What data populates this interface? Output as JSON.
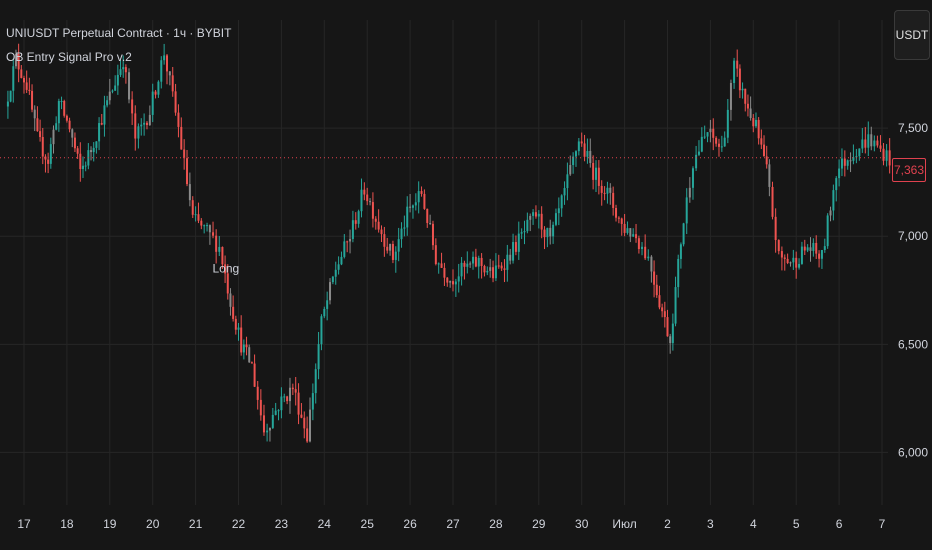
{
  "header": {
    "title": "UNIUSDT Perpetual Contract · 1ч · BYBIT",
    "indicator": "OB Entry Signal Pro v.2",
    "currency_button": "USDT"
  },
  "colors": {
    "background": "#161616",
    "grid": "#262626",
    "text": "#d1d4dc",
    "up": "#26a69a",
    "down": "#ef5350",
    "neutral": "#8a8a8a",
    "last_price": "#e0424f"
  },
  "last_price": "7,363",
  "chart_data": {
    "type": "candlestick",
    "y_axis": {
      "ticks": [
        "6,000",
        "6,500",
        "7,000",
        "7,500"
      ],
      "ylim": [
        5.78,
        8.0
      ]
    },
    "x_axis": {
      "ticks": [
        "17",
        "18",
        "19",
        "20",
        "21",
        "22",
        "23",
        "24",
        "25",
        "26",
        "27",
        "28",
        "29",
        "30",
        "Июл",
        "2",
        "3",
        "4",
        "5",
        "6",
        "7"
      ]
    },
    "path_points": [
      {
        "x": "17",
        "y": 7.6
      },
      {
        "x": "17",
        "y": 7.82
      },
      {
        "x": "17",
        "y": 7.7
      },
      {
        "x": "17",
        "y": 7.45
      },
      {
        "x": "18",
        "y": 7.35
      },
      {
        "x": "18",
        "y": 7.62
      },
      {
        "x": "18",
        "y": 7.5
      },
      {
        "x": "18",
        "y": 7.3
      },
      {
        "x": "19",
        "y": 7.4
      },
      {
        "x": "19",
        "y": 7.55
      },
      {
        "x": "19",
        "y": 7.68
      },
      {
        "x": "19",
        "y": 7.82
      },
      {
        "x": "20",
        "y": 7.45
      },
      {
        "x": "20",
        "y": 7.58
      },
      {
        "x": "20",
        "y": 7.85
      },
      {
        "x": "21",
        "y": 7.5
      },
      {
        "x": "21",
        "y": 7.08
      },
      {
        "x": "21",
        "y": 7.02
      },
      {
        "x": "22",
        "y": 6.95
      },
      {
        "x": "22",
        "y": 6.7
      },
      {
        "x": "22",
        "y": 6.5
      },
      {
        "x": "22",
        "y": 6.4
      },
      {
        "x": "23",
        "y": 6.1
      },
      {
        "x": "23",
        "y": 6.22
      },
      {
        "x": "23",
        "y": 6.3
      },
      {
        "x": "24",
        "y": 6.08
      },
      {
        "x": "24",
        "y": 6.6
      },
      {
        "x": "24",
        "y": 6.85
      },
      {
        "x": "25",
        "y": 7.0
      },
      {
        "x": "25",
        "y": 7.22
      },
      {
        "x": "25",
        "y": 7.05
      },
      {
        "x": "26",
        "y": 6.9
      },
      {
        "x": "26",
        "y": 7.1
      },
      {
        "x": "26",
        "y": 7.2
      },
      {
        "x": "27",
        "y": 6.9
      },
      {
        "x": "27",
        "y": 6.8
      },
      {
        "x": "27",
        "y": 6.85
      },
      {
        "x": "28",
        "y": 6.88
      },
      {
        "x": "28",
        "y": 6.82
      },
      {
        "x": "28",
        "y": 6.9
      },
      {
        "x": "29",
        "y": 7.0
      },
      {
        "x": "29",
        "y": 7.1
      },
      {
        "x": "29",
        "y": 6.98
      },
      {
        "x": "30",
        "y": 7.2
      },
      {
        "x": "30",
        "y": 7.45
      },
      {
        "x": "30",
        "y": 7.3
      },
      {
        "x": "Июл",
        "y": 7.2
      },
      {
        "x": "Июл",
        "y": 7.05
      },
      {
        "x": "Июл",
        "y": 7.0
      },
      {
        "x": "2",
        "y": 6.9
      },
      {
        "x": "2",
        "y": 6.7
      },
      {
        "x": "2",
        "y": 6.52
      },
      {
        "x": "2",
        "y": 6.98
      },
      {
        "x": "3",
        "y": 7.35
      },
      {
        "x": "3",
        "y": 7.48
      },
      {
        "x": "3",
        "y": 7.4
      },
      {
        "x": "4",
        "y": 7.78
      },
      {
        "x": "4",
        "y": 7.62
      },
      {
        "x": "4",
        "y": 7.5
      },
      {
        "x": "4",
        "y": 7.3
      },
      {
        "x": "5",
        "y": 6.9
      },
      {
        "x": "5",
        "y": 6.88
      },
      {
        "x": "5",
        "y": 6.95
      },
      {
        "x": "6",
        "y": 6.9
      },
      {
        "x": "6",
        "y": 7.3
      },
      {
        "x": "6",
        "y": 7.38
      },
      {
        "x": "7",
        "y": 7.45
      },
      {
        "x": "7",
        "y": 7.36
      }
    ],
    "annotations": [
      {
        "text": "Long",
        "x": "22",
        "y": 6.85
      }
    ]
  }
}
